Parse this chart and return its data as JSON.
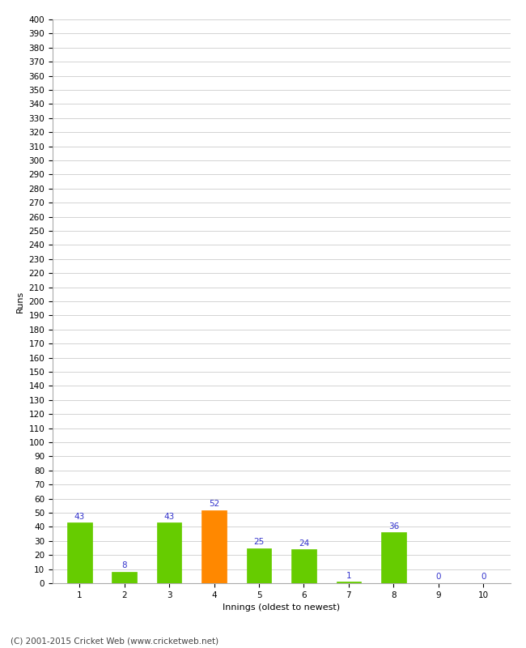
{
  "xlabel": "Innings (oldest to newest)",
  "ylabel": "Runs",
  "categories": [
    "1",
    "2",
    "3",
    "4",
    "5",
    "6",
    "7",
    "8",
    "9",
    "10"
  ],
  "values": [
    43,
    8,
    43,
    52,
    25,
    24,
    1,
    36,
    0,
    0
  ],
  "bar_colors": [
    "#66cc00",
    "#66cc00",
    "#66cc00",
    "#ff8800",
    "#66cc00",
    "#66cc00",
    "#66cc00",
    "#66cc00",
    "#66cc00",
    "#66cc00"
  ],
  "label_color": "#3333cc",
  "ylim": [
    0,
    400
  ],
  "ytick_step": 10,
  "background_color": "#ffffff",
  "grid_color": "#cccccc",
  "footer": "(C) 2001-2015 Cricket Web (www.cricketweb.net)",
  "label_fontsize": 7.5,
  "tick_fontsize": 7.5,
  "xlabel_fontsize": 8,
  "ylabel_fontsize": 8,
  "footer_fontsize": 7.5,
  "bar_width": 0.55
}
